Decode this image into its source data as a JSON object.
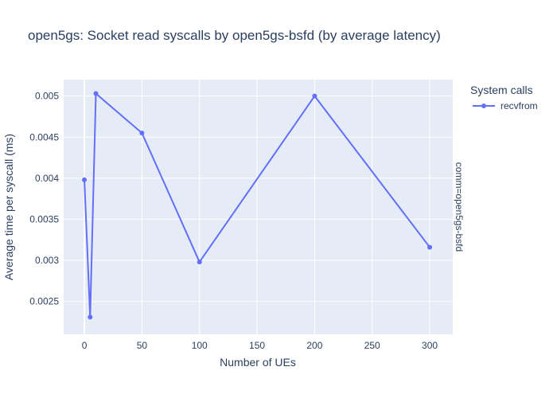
{
  "chart_data": {
    "type": "line",
    "title": "open5gs: Socket read syscalls by open5gs-bsfd (by average latency)",
    "xlabel": "Number of UEs",
    "ylabel": "Average time per syscall (ms)",
    "xlim": [
      -18,
      320
    ],
    "ylim": [
      0.0021,
      0.0052
    ],
    "x_ticks": [
      0,
      50,
      100,
      150,
      200,
      250,
      300
    ],
    "x_tick_labels": [
      "0",
      "50",
      "100",
      "150",
      "200",
      "250",
      "300"
    ],
    "y_ticks": [
      0.0025,
      0.003,
      0.0035,
      0.004,
      0.0045,
      0.005
    ],
    "y_tick_labels": [
      "0.0025",
      "0.003",
      "0.0035",
      "0.004",
      "0.0045",
      "0.005"
    ],
    "grid": true,
    "legend_title": "System calls",
    "legend_position": "top-right",
    "facet_label": "comm=open5gs-bsfd",
    "series": [
      {
        "name": "recvfrom",
        "color": "#636efa",
        "x": [
          0,
          5,
          10,
          50,
          100,
          200,
          300
        ],
        "y": [
          0.00398,
          0.00231,
          0.00503,
          0.00455,
          0.00298,
          0.005,
          0.00316
        ]
      }
    ]
  },
  "colors": {
    "plot_background": "#e5ecf6",
    "grid": "#ffffff",
    "text": "#2a3f5f"
  }
}
